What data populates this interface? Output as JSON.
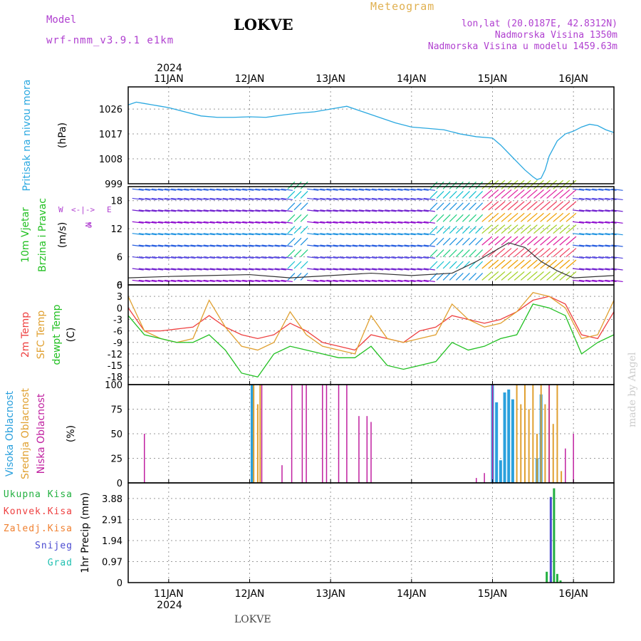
{
  "header": {
    "model_label": "Model",
    "model_name": "wrf-nmm_v3.9.1 e1km",
    "station": "LOKVE",
    "meteogram_title": "Meteogram",
    "lonlat": "lon,lat (20.0187E, 42.8312N)",
    "elevation": "Nadmorska Visina 1350m",
    "model_elevation": "Nadmorska Visina u modelu 1459.63m"
  },
  "footer": {
    "station": "LOKVE",
    "credit": "made by Angel"
  },
  "time_axis": {
    "year": "2024",
    "days": [
      "11JAN",
      "12JAN",
      "13JAN",
      "14JAN",
      "15JAN",
      "16JAN"
    ],
    "range_days": [
      10.5,
      16.5
    ]
  },
  "colors": {
    "pressure": "#2aa8e0",
    "t2m": "#ee4040",
    "tsfc": "#e0a030",
    "dewpoint": "#22c022",
    "cloud_high": "#2aa0dd",
    "cloud_mid": "#e0a030",
    "cloud_low": "#c020a0",
    "precip_total": "#22b040",
    "precip_snow": "#4a4ad0",
    "wind_line": "#333333"
  },
  "panels": {
    "pressure": {
      "title": "Pritisak na nivou mora",
      "unit": "(hPa)"
    },
    "wind": {
      "title1": "10m Vjetar",
      "title2": "Brzina i Pravac",
      "unit": "(m/s)",
      "compass_n": "N",
      "compass_w": "W",
      "compass_e": "E",
      "compass_s": "S",
      "compass_arrow": "<-|->"
    },
    "temp": {
      "title1": "2m Temp",
      "title2": "SFC Temp",
      "title3": "dewpt Temp",
      "unit": "(C)"
    },
    "cloud": {
      "title1": "Visoka Oblacnost",
      "title2": "Srednja Oblacnost",
      "title3": "Niska Oblacnost",
      "unit": "(%)"
    },
    "precip": {
      "unit": "1hr Precip (mm)",
      "legend": [
        "Ukupna Kisa",
        "Konvek.Kisa",
        "Zaledj.Kisa",
        "Snijeg",
        "Grad"
      ],
      "legend_colors": [
        "#22b040",
        "#ee4040",
        "#f08030",
        "#4a4ad0",
        "#20c0b0"
      ]
    }
  },
  "chart_data": [
    {
      "type": "line",
      "title": "Pritisak na nivou mora",
      "ylabel": "(hPa)",
      "ylim": [
        999,
        1034
      ],
      "yticks": [
        999,
        1008,
        1017,
        1026
      ],
      "x": [
        10.5,
        10.6,
        10.7,
        10.8,
        10.9,
        11.0,
        11.2,
        11.4,
        11.6,
        11.8,
        12.0,
        12.2,
        12.4,
        12.6,
        12.8,
        13.0,
        13.2,
        13.4,
        13.6,
        13.8,
        14.0,
        14.2,
        14.4,
        14.6,
        14.8,
        15.0,
        15.1,
        15.2,
        15.3,
        15.4,
        15.5,
        15.55,
        15.6,
        15.65,
        15.7,
        15.8,
        15.9,
        16.0,
        16.1,
        16.2,
        16.3,
        16.4,
        16.5
      ],
      "series": [
        {
          "name": "Pritisak",
          "values": [
            1027.5,
            1028.5,
            1028.0,
            1027.5,
            1027.0,
            1026.5,
            1025.0,
            1023.5,
            1023.0,
            1023.0,
            1023.2,
            1023.0,
            1023.8,
            1024.5,
            1025.0,
            1026.0,
            1027.0,
            1025.0,
            1023.0,
            1021.0,
            1019.5,
            1019.0,
            1018.5,
            1017.0,
            1016.0,
            1015.5,
            1013.0,
            1010.0,
            1007.0,
            1004.0,
            1001.5,
            1000.5,
            1001.0,
            1004.0,
            1009.0,
            1014.5,
            1017.0,
            1018.0,
            1019.5,
            1020.5,
            1020.0,
            1018.5,
            1017.5
          ]
        }
      ]
    },
    {
      "type": "line",
      "title": "10m Vjetar Brzina i Pravac",
      "ylabel": "(m/s)",
      "ylim": [
        0,
        21
      ],
      "yticks": [
        0,
        6,
        12,
        18
      ],
      "x": [
        10.5,
        11.0,
        11.5,
        12.0,
        12.5,
        13.0,
        13.5,
        14.0,
        14.5,
        14.8,
        15.0,
        15.2,
        15.4,
        15.6,
        15.8,
        16.0,
        16.5
      ],
      "series": [
        {
          "name": "Brzina",
          "values": [
            1.5,
            1.8,
            2.0,
            2.2,
            1.5,
            2.0,
            2.5,
            2.0,
            2.5,
            5,
            7,
            9,
            8,
            5,
            3,
            1.5,
            2
          ]
        }
      ]
    },
    {
      "type": "line",
      "title": "Temperature",
      "ylabel": "(C)",
      "ylim": [
        -20,
        6
      ],
      "yticks": [
        -18,
        -15,
        -12,
        -9,
        -6,
        -3,
        0,
        3,
        6
      ],
      "x": [
        10.5,
        10.7,
        10.9,
        11.1,
        11.3,
        11.5,
        11.7,
        11.9,
        12.1,
        12.3,
        12.5,
        12.7,
        12.9,
        13.1,
        13.3,
        13.5,
        13.7,
        13.9,
        14.1,
        14.3,
        14.5,
        14.7,
        14.9,
        15.1,
        15.3,
        15.5,
        15.7,
        15.9,
        16.1,
        16.3,
        16.5
      ],
      "series": [
        {
          "name": "2m Temp",
          "values": [
            0,
            -6,
            -6,
            -5.5,
            -5,
            -2,
            -5,
            -7,
            -8,
            -7,
            -4,
            -6,
            -9,
            -10,
            -11,
            -7,
            -8,
            -9,
            -6,
            -5,
            -2,
            -3,
            -4,
            -3,
            -1,
            2,
            3,
            1,
            -7,
            -8,
            -1
          ]
        },
        {
          "name": "SFC Temp",
          "values": [
            3,
            -6,
            -8,
            -9,
            -8,
            2,
            -5,
            -10,
            -11,
            -9,
            -1,
            -7,
            -10,
            -11,
            -12,
            -2,
            -8,
            -9,
            -8,
            -7,
            1,
            -3,
            -5,
            -4,
            -1,
            4,
            3,
            0,
            -8,
            -7,
            2
          ]
        },
        {
          "name": "dewpt Temp",
          "values": [
            -2,
            -7,
            -8,
            -9,
            -9,
            -7,
            -11,
            -17,
            -18,
            -12,
            -10,
            -11,
            -12,
            -13,
            -13,
            -10,
            -15,
            -16,
            -15,
            -14,
            -9,
            -11,
            -10,
            -8,
            -7,
            1,
            0,
            -2,
            -12,
            -9,
            -7
          ]
        }
      ]
    },
    {
      "type": "bar",
      "title": "Oblacnost",
      "ylabel": "(%)",
      "ylim": [
        0,
        100
      ],
      "yticks": [
        0,
        25,
        50,
        75,
        100
      ],
      "series": [
        {
          "name": "Visoka Oblacnost",
          "x": [
            12.03,
            15.0,
            15.05,
            15.1,
            15.15,
            15.2,
            15.25,
            15.55,
            15.6
          ],
          "values": [
            100,
            100,
            82,
            23,
            92,
            95,
            85,
            25,
            90
          ]
        },
        {
          "name": "Srednja Oblacnost",
          "x": [
            12.05,
            12.1,
            12.13,
            15.3,
            15.35,
            15.4,
            15.45,
            15.5,
            15.55,
            15.6,
            15.65,
            15.7,
            15.75,
            15.8,
            15.85
          ],
          "values": [
            100,
            80,
            100,
            100,
            80,
            100,
            75,
            100,
            50,
            100,
            80,
            100,
            60,
            100,
            12
          ]
        },
        {
          "name": "Niska Oblacnost",
          "x": [
            10.7,
            12.15,
            12.4,
            12.52,
            12.65,
            12.7,
            12.9,
            12.95,
            13.1,
            13.2,
            13.35,
            13.45,
            13.5,
            14.8,
            14.9,
            15.0,
            15.7,
            15.9,
            16.0
          ],
          "values": [
            50,
            100,
            18,
            100,
            100,
            100,
            100,
            100,
            100,
            100,
            68,
            68,
            62,
            5,
            10,
            100,
            100,
            35,
            50
          ]
        }
      ]
    },
    {
      "type": "bar",
      "title": "1hr Precip",
      "ylabel": "1hr Precip (mm)",
      "ylim": [
        0,
        4.6
      ],
      "yticks": [
        0,
        0.97,
        1.94,
        2.91,
        3.88
      ],
      "series": [
        {
          "name": "Ukupna Kisa",
          "x": [
            15.67,
            15.72,
            15.76,
            15.8,
            15.84
          ],
          "values": [
            0.5,
            0.3,
            4.35,
            0.4,
            0.1
          ]
        },
        {
          "name": "Snijeg",
          "x": [
            15.72
          ],
          "values": [
            3.95
          ]
        }
      ]
    }
  ]
}
